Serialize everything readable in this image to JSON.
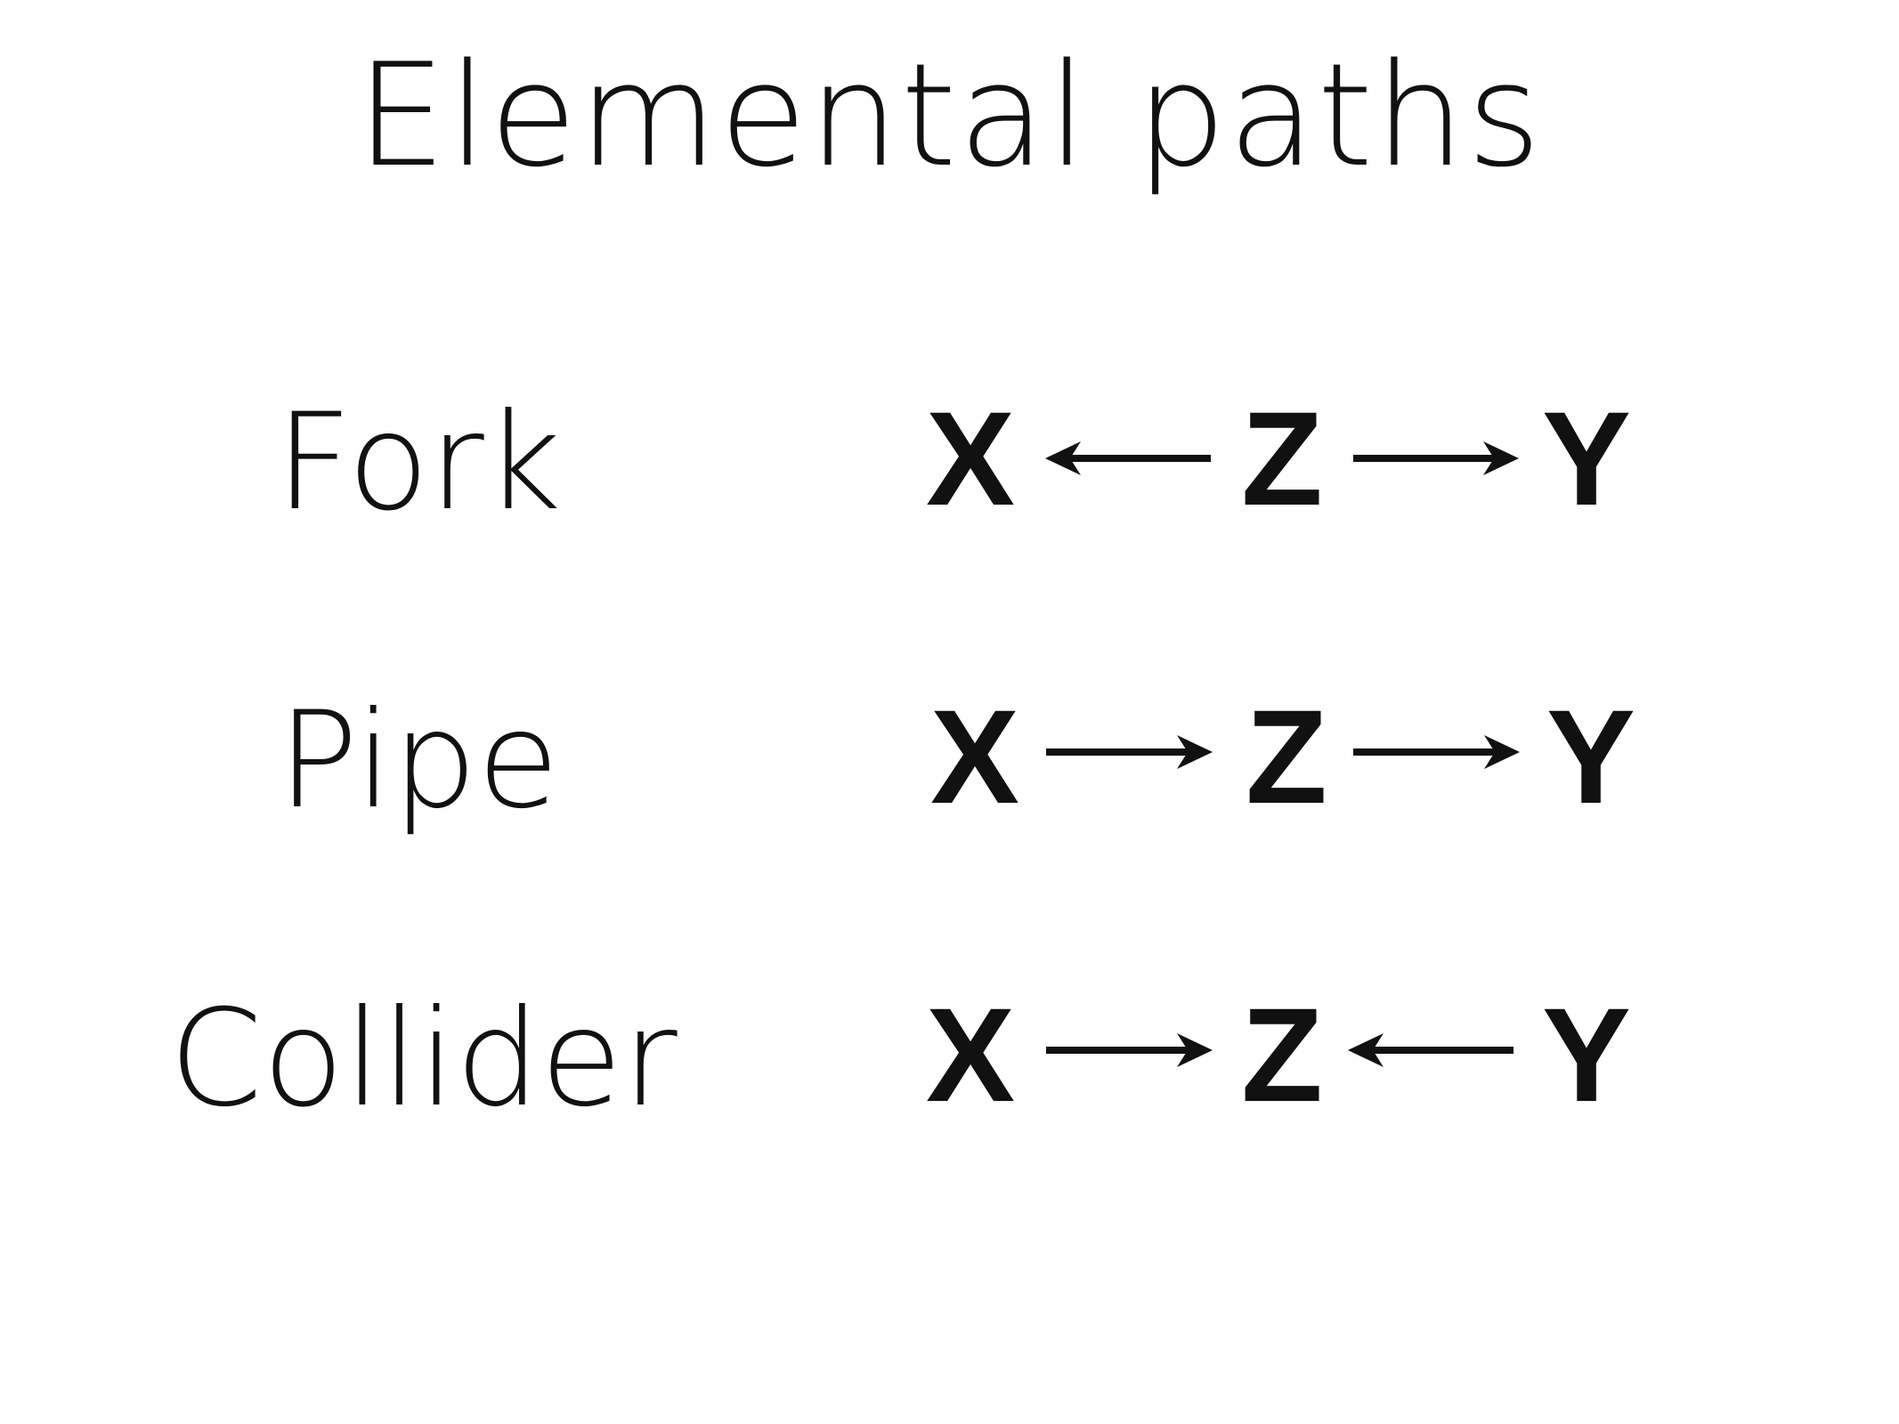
{
  "title": "Elemental paths",
  "rows": [
    {
      "label": "Fork",
      "nodes": [
        "X",
        "Z",
        "Y"
      ],
      "arrows": [
        "left",
        "right"
      ]
    },
    {
      "label": "Pipe",
      "nodes": [
        "X",
        "Z",
        "Y"
      ],
      "arrows": [
        "right",
        "right"
      ]
    },
    {
      "label": "Collider",
      "nodes": [
        "X",
        "Z",
        "Y"
      ],
      "arrows": [
        "right",
        "left"
      ]
    }
  ]
}
